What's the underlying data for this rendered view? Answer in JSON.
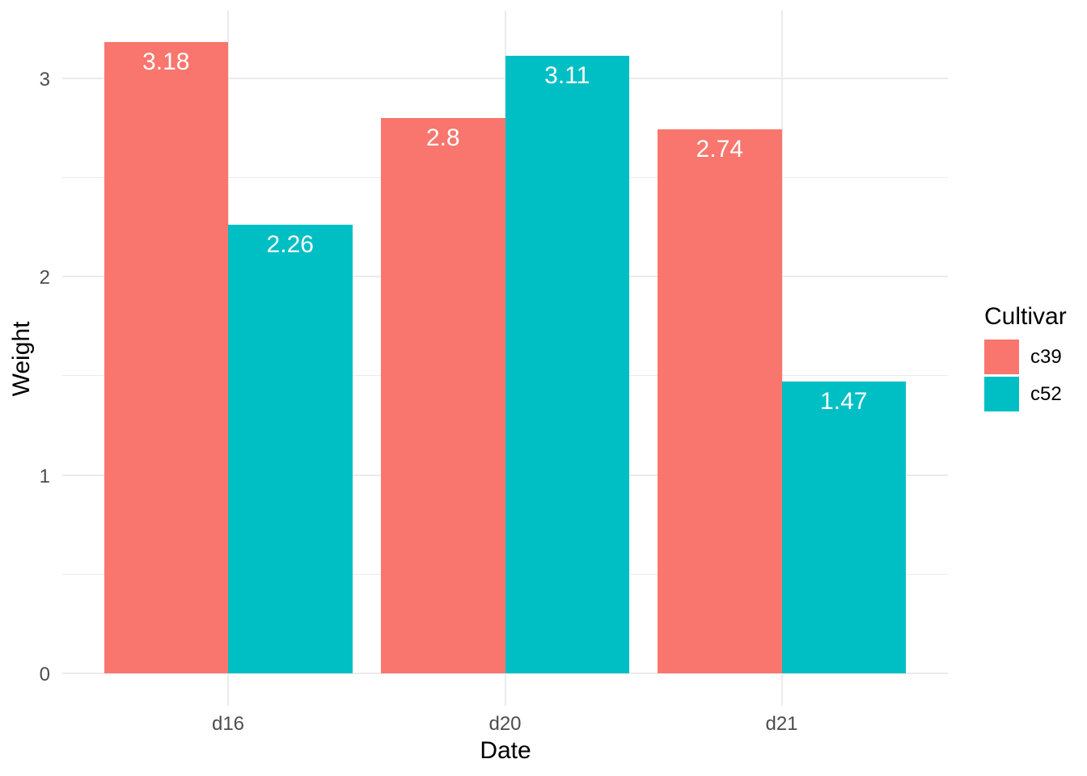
{
  "chart_data": {
    "type": "bar",
    "grouping": "dodged",
    "categories": [
      "d16",
      "d20",
      "d21"
    ],
    "series": [
      {
        "name": "c39",
        "color": "#F8766D",
        "values": [
          3.18,
          2.8,
          2.74
        ],
        "labels": [
          "3.18",
          "2.8",
          "2.74"
        ]
      },
      {
        "name": "c52",
        "color": "#00BFC4",
        "values": [
          2.26,
          3.11,
          1.47
        ],
        "labels": [
          "2.26",
          "3.11",
          "1.47"
        ]
      }
    ],
    "xlabel": "Date",
    "ylabel": "Weight",
    "ylim": [
      -0.17,
      3.34
    ],
    "y_major_ticks": [
      0,
      1,
      2,
      3
    ],
    "y_tick_labels": [
      "0",
      "1",
      "2",
      "3"
    ],
    "y_minor_ticks": [
      0.5,
      1.5,
      2.5
    ],
    "grid": true,
    "legend_title": "Cultivar",
    "legend_position": "right",
    "bar_label_color": "#FFFFFF",
    "background_color": "#FFFFFF",
    "gridline_color": "#EBEBEB",
    "axis_text_color": "#4D4D4D",
    "title_text_color": "#000000"
  }
}
